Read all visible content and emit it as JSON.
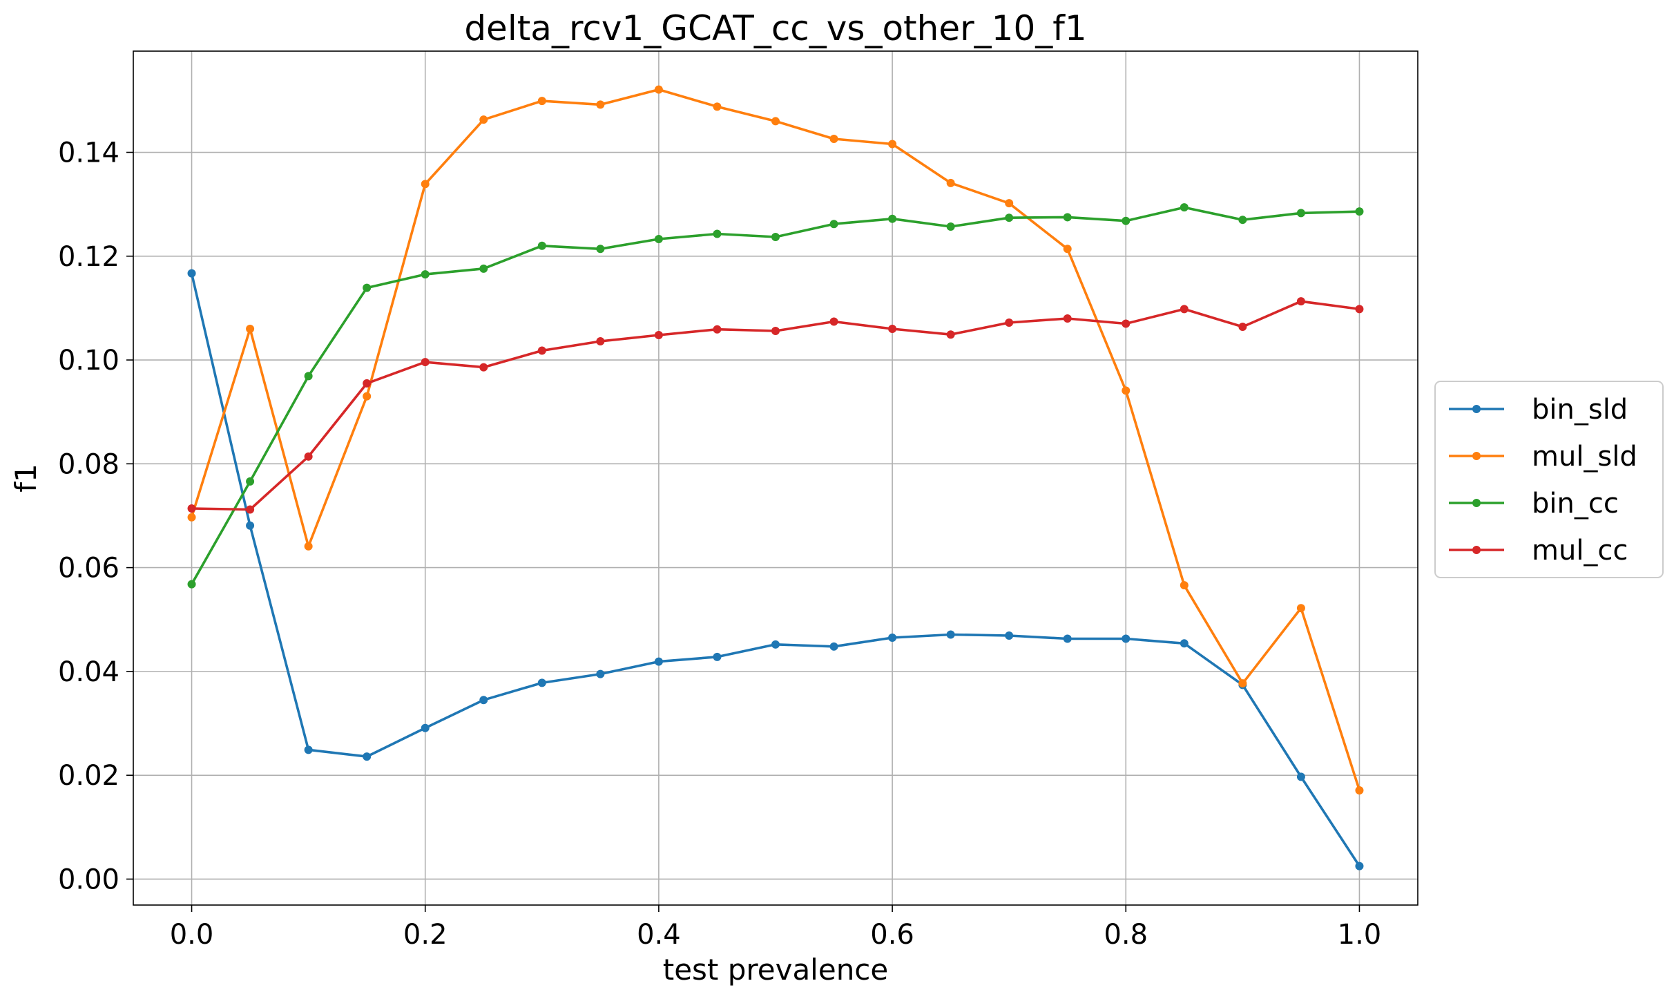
{
  "chart_data": {
    "type": "line",
    "title": "delta_rcv1_GCAT_cc_vs_other_10_f1",
    "xlabel": "test prevalence",
    "ylabel": "f1",
    "xlim": [
      -0.05,
      1.05
    ],
    "ylim": [
      -0.005,
      0.1595
    ],
    "xticks": [
      0.0,
      0.2,
      0.4,
      0.6,
      0.8,
      1.0
    ],
    "xtick_labels": [
      "0.0",
      "0.2",
      "0.4",
      "0.6",
      "0.8",
      "1.0"
    ],
    "yticks": [
      0.0,
      0.02,
      0.04,
      0.06,
      0.08,
      0.1,
      0.12,
      0.14
    ],
    "ytick_labels": [
      "0.00",
      "0.02",
      "0.04",
      "0.06",
      "0.08",
      "0.10",
      "0.12",
      "0.14"
    ],
    "grid": true,
    "legend_position": "outside-right",
    "x": [
      0.0,
      0.05,
      0.1,
      0.15,
      0.2,
      0.25,
      0.3,
      0.35,
      0.4,
      0.45,
      0.5,
      0.55,
      0.6,
      0.65,
      0.7,
      0.75,
      0.8,
      0.85,
      0.9,
      0.95,
      1.0
    ],
    "series": [
      {
        "name": "bin_sld",
        "color": "#1f77b4",
        "values": [
          0.1167,
          0.0681,
          0.0249,
          0.0236,
          0.0291,
          0.0345,
          0.0378,
          0.0395,
          0.0419,
          0.0428,
          0.0452,
          0.0448,
          0.0465,
          0.0471,
          0.0469,
          0.0463,
          0.0463,
          0.0454,
          0.0374,
          0.0197,
          0.0025
        ]
      },
      {
        "name": "mul_sld",
        "color": "#ff7f0e",
        "values": [
          0.0697,
          0.106,
          0.0641,
          0.093,
          0.1339,
          0.1463,
          0.1499,
          0.1492,
          0.1521,
          0.1488,
          0.146,
          0.1426,
          0.1416,
          0.1341,
          0.1302,
          0.1214,
          0.0941,
          0.0566,
          0.0377,
          0.0522,
          0.0171
        ]
      },
      {
        "name": "bin_cc",
        "color": "#2ca02c",
        "values": [
          0.0568,
          0.0766,
          0.0969,
          0.1139,
          0.1165,
          0.1176,
          0.122,
          0.1214,
          0.1233,
          0.1243,
          0.1237,
          0.1262,
          0.1272,
          0.1257,
          0.1274,
          0.1275,
          0.1268,
          0.1294,
          0.127,
          0.1283,
          0.1286
        ]
      },
      {
        "name": "mul_cc",
        "color": "#d62728",
        "values": [
          0.0714,
          0.0712,
          0.0814,
          0.0955,
          0.0996,
          0.0986,
          0.1018,
          0.1036,
          0.1048,
          0.1059,
          0.1056,
          0.1074,
          0.106,
          0.1049,
          0.1072,
          0.108,
          0.107,
          0.1098,
          0.1064,
          0.1113,
          0.1098
        ]
      }
    ]
  }
}
